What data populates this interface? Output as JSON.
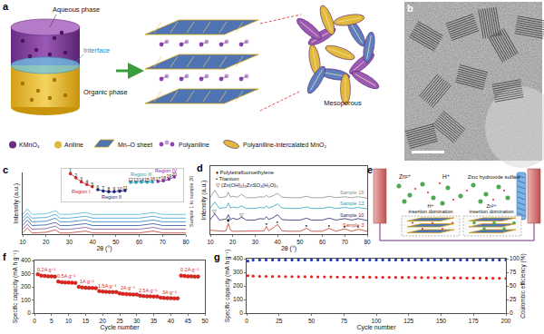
{
  "figure": {
    "panel_labels": [
      "a",
      "b",
      "c",
      "d",
      "e",
      "f",
      "g"
    ],
    "a": {
      "aqueous": "Aqueous phase",
      "interface": "Interface",
      "organic": "Organic phase",
      "mesoporous": "Mesoporous",
      "key": [
        "KMnO₄",
        "Aniline",
        "Mn–O sheet",
        "Polyaniline",
        "Polyaniline-intercalated MnO₂"
      ]
    },
    "e": {
      "zn": "Zn²⁺",
      "h": "H⁺",
      "zhs": "Zinc hydroxide sulfate",
      "left": "H⁺ insertion domination",
      "right": "Zn²⁺ insertion domination"
    }
  },
  "chart_data": [
    {
      "type": "line",
      "x_label": "2θ (°)",
      "y_label": "Intensity (a.u.)",
      "x": [
        10,
        12,
        14,
        20,
        24,
        26,
        30,
        37,
        40,
        50,
        60,
        66,
        70,
        80
      ],
      "xlim": [
        10,
        80
      ],
      "xticks": [
        10,
        20,
        30,
        40,
        50,
        60,
        70,
        80
      ],
      "ylim": [
        0,
        100
      ],
      "tick_labels": "x",
      "series": [
        {
          "color": "#c0392b",
          "values": [
            2,
            10,
            2,
            3,
            7,
            2,
            2,
            5,
            2,
            2,
            2,
            5,
            2,
            2
          ]
        },
        {
          "color": "#7b4fa0",
          "values": [
            8,
            16,
            8,
            9,
            13,
            8,
            8,
            11,
            8,
            8,
            8,
            11,
            8,
            8
          ]
        },
        {
          "color": "#2c4f9e",
          "values": [
            14,
            23,
            14,
            15,
            19,
            14,
            14,
            17,
            14,
            14,
            14,
            17,
            14,
            14
          ]
        },
        {
          "color": "#2f78c4",
          "values": [
            20,
            29,
            20,
            21,
            26,
            20,
            20,
            23,
            20,
            20,
            20,
            23,
            20,
            20
          ]
        },
        {
          "color": "#3a9bd1",
          "values": [
            26,
            34,
            26,
            27,
            32,
            26,
            26,
            29,
            26,
            26,
            26,
            29,
            26,
            26
          ]
        },
        {
          "color": "#4fb8c9",
          "values": [
            32,
            41,
            32,
            33,
            38,
            32,
            32,
            35,
            32,
            32,
            32,
            35,
            32,
            32
          ]
        }
      ],
      "annotations": [
        {
          "text": "Sample 1 to sample 20"
        }
      ]
    },
    {
      "type": "line",
      "categories": [
        "1",
        "2",
        "3",
        "4",
        "5",
        "6",
        "7",
        "8",
        "9",
        "10",
        "11",
        "12",
        "13",
        "14",
        "15",
        "16",
        "17",
        "18",
        "19",
        "20"
      ],
      "ylim": [
        0,
        10
      ],
      "tick_labels": false,
      "marker": "circle",
      "series": [
        {
          "color": "#c62828",
          "values": [
            8.5,
            7.2,
            6.0,
            5.2,
            4.5,
            null,
            null,
            null,
            null,
            null,
            null,
            null,
            null,
            null,
            null,
            null,
            null,
            null,
            null,
            null
          ]
        },
        {
          "color": "#1a237e",
          "values": [
            null,
            null,
            null,
            null,
            null,
            3.6,
            3.2,
            3.0,
            3.0,
            3.1,
            3.3,
            null,
            null,
            null,
            null,
            null,
            null,
            null,
            null,
            null
          ]
        },
        {
          "color": "#1fa3b5",
          "values": [
            null,
            null,
            null,
            null,
            null,
            null,
            null,
            null,
            null,
            null,
            null,
            5.8,
            5.8,
            5.9,
            5.9,
            6.0,
            null,
            null,
            null,
            null
          ]
        },
        {
          "color": "#8e24aa",
          "values": [
            null,
            null,
            null,
            null,
            null,
            null,
            null,
            null,
            null,
            null,
            null,
            null,
            null,
            null,
            null,
            null,
            6.1,
            6.3,
            6.8,
            7.5
          ]
        }
      ],
      "annotations": [
        {
          "text": "Region I",
          "x": 2,
          "y": 3.0,
          "color": "#c62828"
        },
        {
          "text": "Region II",
          "x": 7.5,
          "y": 1.4,
          "color": "#1a237e"
        },
        {
          "text": "Region III",
          "x": 13,
          "y": 8.3,
          "color": "#1fa3b5"
        },
        {
          "text": "Region IV",
          "x": 17.5,
          "y": 9.4,
          "color": "#8e24aa"
        }
      ]
    },
    {
      "type": "line",
      "x_label": "2θ (°)",
      "y_label": "Intensity (a.u.)",
      "x": [
        10,
        12,
        14,
        16,
        17,
        18,
        19,
        20,
        22,
        24,
        26,
        28,
        30,
        32,
        34,
        35,
        36,
        38,
        40,
        42,
        45,
        50,
        53,
        55,
        60,
        63,
        66,
        70,
        73,
        76,
        80
      ],
      "xlim": [
        10,
        80
      ],
      "xticks": [
        10,
        20,
        30,
        40,
        50,
        60,
        70,
        80
      ],
      "ylim": [
        0,
        140
      ],
      "tick_labels": "x",
      "series": [
        {
          "name": "Sample 19",
          "color": "#8c8c8c",
          "values": [
            76,
            90,
            75,
            76,
            77,
            86,
            76,
            78,
            76,
            82,
            75,
            75,
            75,
            77,
            76,
            80,
            76,
            79,
            84,
            76,
            75,
            75,
            78,
            75,
            75,
            78,
            75,
            77,
            75,
            77,
            74
          ]
        },
        {
          "name": "Sample 13",
          "color": "#29a3b8",
          "values": [
            54,
            66,
            53,
            54,
            55,
            64,
            54,
            56,
            54,
            58,
            53,
            53,
            53,
            55,
            54,
            58,
            54,
            57,
            62,
            54,
            53,
            53,
            56,
            53,
            53,
            56,
            53,
            55,
            53,
            55,
            52
          ]
        },
        {
          "name": "Sample 10",
          "color": "#1f2a6b",
          "values": [
            30,
            42,
            29,
            30,
            31,
            40,
            30,
            33,
            30,
            35,
            29,
            29,
            29,
            32,
            31,
            36,
            30,
            34,
            40,
            30,
            29,
            29,
            33,
            29,
            29,
            33,
            29,
            32,
            29,
            32,
            28
          ]
        },
        {
          "name": "Sample 3",
          "color": "#c0392b",
          "values": [
            8,
            7,
            6,
            6,
            7,
            22,
            8,
            6,
            6,
            6,
            6,
            6,
            6,
            6,
            7,
            16,
            7,
            13,
            20,
            7,
            6,
            6,
            12,
            6,
            6,
            12,
            6,
            11,
            6,
            10,
            6
          ]
        }
      ],
      "key": [
        {
          "symbol": "♦",
          "label": "Polytetrafluoroethylene"
        },
        {
          "symbol": "•",
          "label": "Titanium"
        },
        {
          "symbol": "▽",
          "label": "(Zn(OH)₂)₃ZnSO₄(H₂O)₅"
        }
      ],
      "annotations": [
        {
          "text": "♦",
          "x": 18,
          "y": 28
        },
        {
          "text": "•",
          "x": 35,
          "y": 21
        },
        {
          "text": "•",
          "x": 40,
          "y": 25
        },
        {
          "text": "•",
          "x": 53,
          "y": 17
        },
        {
          "text": "•",
          "x": 63,
          "y": 17
        },
        {
          "text": "•",
          "x": 70,
          "y": 16
        },
        {
          "text": "•",
          "x": 76,
          "y": 15
        },
        {
          "text": "▽",
          "x": 12,
          "y": 48
        },
        {
          "text": "▽",
          "x": 24,
          "y": 41
        }
      ]
    },
    {
      "type": "scatter",
      "x_label": "Cycle number",
      "y_label": "Specific capacity (mA h g⁻¹)",
      "x": [
        1,
        2,
        3,
        4,
        5,
        6,
        7,
        8,
        9,
        10,
        11,
        12,
        13,
        14,
        15,
        16,
        17,
        18,
        19,
        20,
        21,
        22,
        23,
        24,
        25,
        26,
        27,
        28,
        29,
        30,
        31,
        32,
        33,
        34,
        35,
        36,
        37,
        38,
        39,
        40,
        41,
        42,
        43,
        44,
        45,
        46,
        47,
        48
      ],
      "values": [
        295,
        285,
        282,
        280,
        279,
        278,
        240,
        235,
        233,
        232,
        231,
        230,
        200,
        195,
        193,
        192,
        191,
        190,
        168,
        164,
        162,
        161,
        160,
        160,
        150,
        146,
        144,
        143,
        142,
        141,
        133,
        130,
        128,
        127,
        126,
        126,
        118,
        115,
        114,
        113,
        112,
        112,
        285,
        282,
        280,
        279,
        278,
        278
      ],
      "color": "#e8231c",
      "marker": "circle",
      "xlim": [
        0,
        50
      ],
      "xticks": [
        0,
        5,
        10,
        15,
        20,
        25,
        30,
        35,
        40,
        45,
        50
      ],
      "ylim": [
        0,
        400
      ],
      "yticks": [
        0,
        100,
        200,
        300,
        400
      ],
      "annotations": [
        {
          "text": "0.2A g⁻¹",
          "x": 3.5,
          "y": 330
        },
        {
          "text": "0.5A g⁻¹",
          "x": 9.5,
          "y": 280
        },
        {
          "text": "1A g⁻¹",
          "x": 15.5,
          "y": 240
        },
        {
          "text": "1.5A g⁻¹",
          "x": 21.5,
          "y": 208
        },
        {
          "text": "2A g⁻¹",
          "x": 27.5,
          "y": 190
        },
        {
          "text": "2.5A g⁻¹",
          "x": 33.5,
          "y": 173
        },
        {
          "text": "3A g⁻¹",
          "x": 39.5,
          "y": 158
        },
        {
          "text": "0.2A g⁻¹",
          "x": 45.5,
          "y": 330
        }
      ]
    },
    {
      "type": "scatter",
      "x_label": "Cycle number",
      "y_label": "Specific capacity (mA h g⁻¹)",
      "y2_label": "Coulombic efficiency (%)",
      "x": [
        1,
        5,
        10,
        15,
        20,
        25,
        30,
        35,
        40,
        45,
        50,
        55,
        60,
        65,
        70,
        75,
        80,
        85,
        90,
        95,
        100,
        105,
        110,
        115,
        120,
        125,
        130,
        135,
        140,
        145,
        150,
        155,
        160,
        165,
        170,
        175,
        180,
        185,
        190,
        195,
        200
      ],
      "marker": "circle",
      "xlim": [
        0,
        200
      ],
      "xticks": [
        0,
        25,
        50,
        75,
        100,
        125,
        150,
        175,
        200
      ],
      "ylim": [
        0,
        400
      ],
      "yticks": [
        0,
        100,
        200,
        300,
        400
      ],
      "y2lim": [
        0,
        100
      ],
      "y2ticks": [
        0,
        25,
        50,
        75,
        100
      ],
      "series": [
        {
          "color": "#e8231c",
          "values": [
            275,
            272,
            270,
            270,
            269,
            270,
            268,
            268,
            267,
            268,
            267,
            266,
            266,
            266,
            265,
            265,
            265,
            264,
            264,
            264,
            263,
            263,
            263,
            262,
            262,
            262,
            261,
            261,
            261,
            260,
            260,
            259,
            259,
            259,
            258,
            258,
            257,
            257,
            256,
            256,
            255
          ]
        },
        {
          "color": "#1f3ea8",
          "axis": "y2",
          "values": [
            95.5,
            97.4,
            97.6,
            97.5,
            97.6,
            97.5,
            97.7,
            97.6,
            97.5,
            97.6,
            97.6,
            97.5,
            97.7,
            97.6,
            97.6,
            97.5,
            97.6,
            97.7,
            97.6,
            97.5,
            97.6,
            97.6,
            97.5,
            97.7,
            97.6,
            97.6,
            97.5,
            97.6,
            97.7,
            97.6,
            97.5,
            97.6,
            97.6,
            97.7,
            97.6,
            97.5,
            97.6,
            97.6,
            97.7,
            97.6,
            97.6
          ]
        }
      ]
    }
  ]
}
